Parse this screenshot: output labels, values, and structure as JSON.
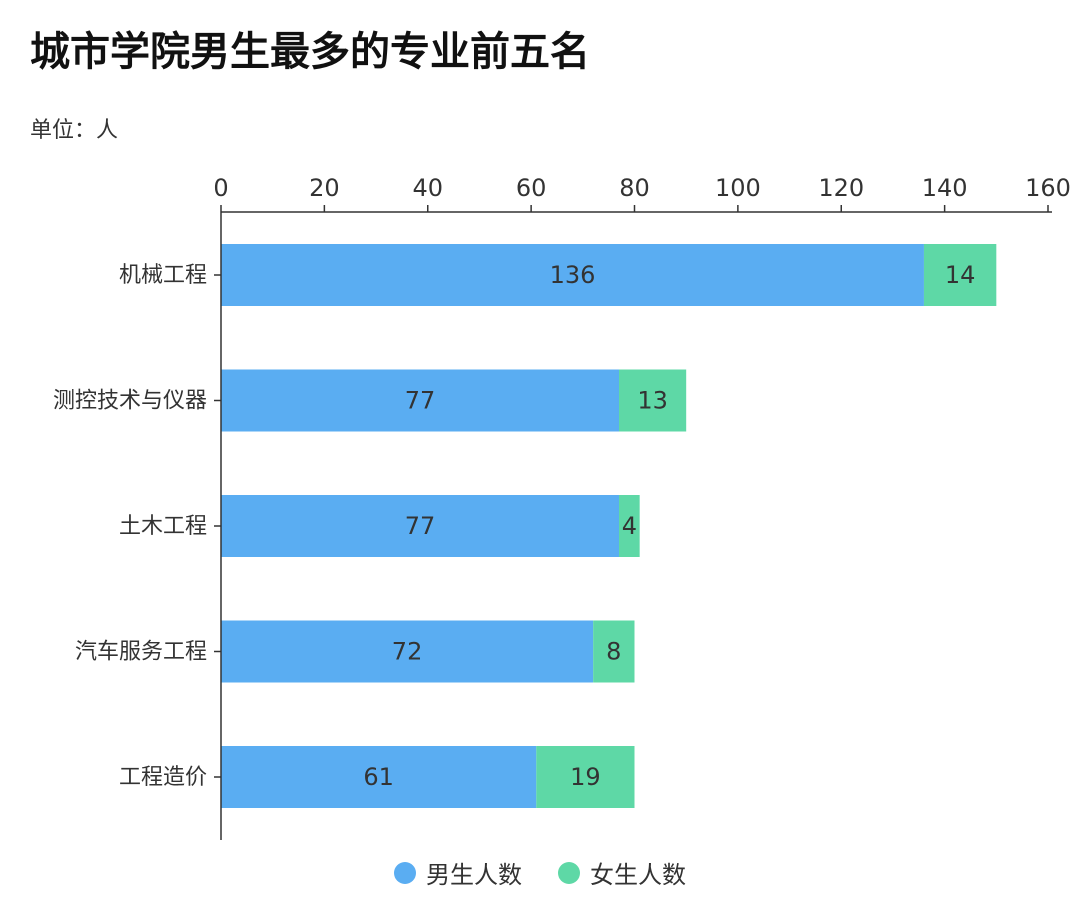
{
  "header": {
    "title": "城市学院男生最多的专业前五名",
    "unit": "单位：人"
  },
  "colors": {
    "male": "#5AADF2",
    "female": "#5ED8A6",
    "axis": "#333333",
    "label_text": "#333333"
  },
  "chart_data": {
    "type": "bar",
    "orientation": "horizontal",
    "stacked": true,
    "title": "城市学院男生最多的专业前五名",
    "subtitle": "单位：人",
    "categories": [
      "机械工程",
      "测控技术与仪器",
      "土木工程",
      "汽车服务工程",
      "工程造价"
    ],
    "series": [
      {
        "name": "男生人数",
        "color": "#5AADF2",
        "values": [
          136,
          77,
          77,
          72,
          61
        ]
      },
      {
        "name": "女生人数",
        "color": "#5ED8A6",
        "values": [
          14,
          13,
          4,
          8,
          19
        ]
      }
    ],
    "xlim": [
      0,
      160
    ],
    "xticks": [
      0,
      20,
      40,
      60,
      80,
      100,
      120,
      140,
      160
    ],
    "x_axis_position": "top",
    "grid": false,
    "legend_position": "bottom-center",
    "data_labels": true
  }
}
